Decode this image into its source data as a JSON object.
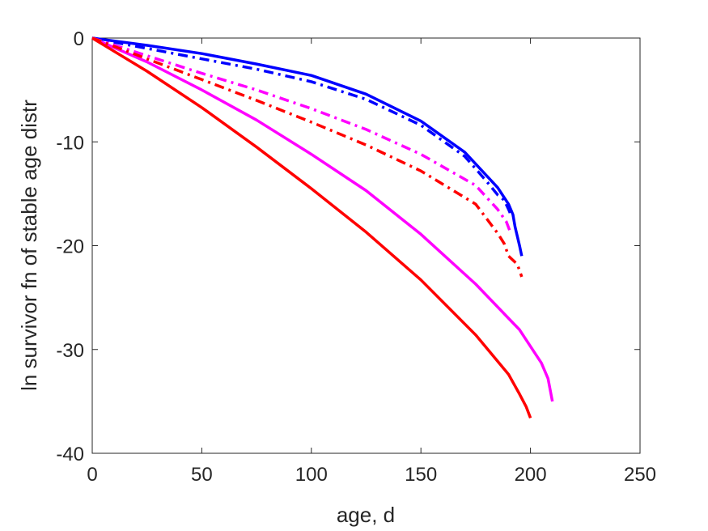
{
  "chart_data": {
    "type": "line",
    "title": "",
    "xlabel": "age, d",
    "ylabel": "ln survivor fn of stable age distr",
    "xlim": [
      0,
      250
    ],
    "ylim": [
      -40,
      0
    ],
    "xticks": [
      0,
      50,
      100,
      150,
      200,
      250
    ],
    "yticks": [
      -40,
      -30,
      -20,
      -10,
      0
    ],
    "xtick_labels": [
      "0",
      "50",
      "100",
      "150",
      "200",
      "250"
    ],
    "ytick_labels": [
      "-40",
      "-30",
      "-20",
      "-10",
      "0"
    ],
    "grid": false,
    "legend": null,
    "series": [
      {
        "color": "#0000ff",
        "style": "solid",
        "x": [
          0,
          25,
          50,
          75,
          100,
          125,
          150,
          170,
          185,
          190,
          192,
          193,
          195,
          196
        ],
        "y": [
          0,
          -0.7,
          -1.5,
          -2.5,
          -3.6,
          -5.4,
          -8.0,
          -11.0,
          -14.4,
          -16.0,
          -17.0,
          -18.2,
          -20.0,
          -21.0
        ]
      },
      {
        "color": "#0000ff",
        "style": "dashdot",
        "x": [
          0,
          25,
          50,
          75,
          100,
          125,
          150,
          170,
          180,
          185,
          188,
          190,
          191
        ],
        "y": [
          0,
          -1.0,
          -2.0,
          -3.0,
          -4.2,
          -5.9,
          -8.4,
          -11.4,
          -13.8,
          -15.1,
          -15.6,
          -16.5,
          -17.0
        ]
      },
      {
        "color": "#ff00ff",
        "style": "solid",
        "x": [
          0,
          25,
          50,
          75,
          100,
          125,
          150,
          175,
          195,
          205,
          208,
          210
        ],
        "y": [
          0,
          -2.3,
          -5.0,
          -7.9,
          -11.2,
          -14.7,
          -18.9,
          -23.7,
          -28.1,
          -31.3,
          -32.8,
          -35.0
        ]
      },
      {
        "color": "#ff00ff",
        "style": "dashdot",
        "x": [
          0,
          25,
          50,
          75,
          100,
          125,
          150,
          175,
          185,
          189,
          191
        ],
        "y": [
          0,
          -1.7,
          -3.4,
          -5.0,
          -6.8,
          -8.8,
          -11.2,
          -14.2,
          -16.5,
          -17.7,
          -18.8
        ]
      },
      {
        "color": "#ff0000",
        "style": "solid",
        "x": [
          0,
          25,
          50,
          75,
          100,
          125,
          150,
          175,
          190,
          195,
          198,
          200
        ],
        "y": [
          0,
          -3.2,
          -6.7,
          -10.5,
          -14.5,
          -18.7,
          -23.3,
          -28.6,
          -32.4,
          -34.3,
          -35.5,
          -36.6
        ]
      },
      {
        "color": "#ff0000",
        "style": "dashdot",
        "x": [
          0,
          25,
          50,
          75,
          100,
          125,
          150,
          175,
          185,
          188,
          190,
          194,
          196
        ],
        "y": [
          0,
          -2.0,
          -4.0,
          -6.0,
          -8.1,
          -10.3,
          -12.8,
          -16.0,
          -18.8,
          -19.8,
          -21.0,
          -21.8,
          -23.0
        ]
      }
    ]
  }
}
